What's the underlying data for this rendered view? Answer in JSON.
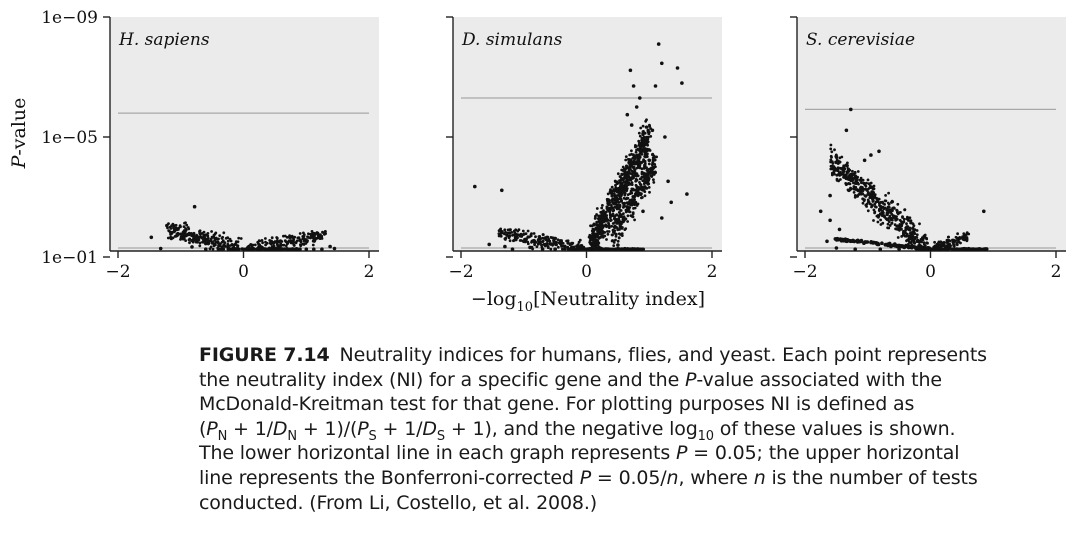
{
  "chart_data": [
    {
      "type": "scatter",
      "title": "H. sapiens",
      "xlim": [
        -2,
        2
      ],
      "xticks": [
        -2,
        0,
        2
      ],
      "xtick_labels": [
        "−2",
        "0",
        "2"
      ],
      "ylabel": "P-value",
      "y_scale": "log-reversed",
      "yticks": [
        1e-09,
        1e-05,
        0.1
      ],
      "ytick_labels": [
        "1e−09",
        "1e−05",
        "1e−01"
      ],
      "hlines": [
        0.05,
        1.6e-06
      ],
      "points": [
        [
          -1.47,
          0.022
        ],
        [
          -1.22,
          0.009
        ],
        [
          -1.05,
          0.018
        ],
        [
          -1.15,
          0.024
        ],
        [
          -1.32,
          0.052
        ],
        [
          -0.95,
          0.021
        ],
        [
          -0.78,
          0.0021
        ],
        [
          -0.82,
          0.046
        ],
        [
          -0.6,
          0.061
        ],
        [
          -0.4,
          0.19
        ],
        [
          -0.2,
          0.48
        ],
        [
          0.4,
          0.21
        ],
        [
          0.7,
          0.11
        ],
        [
          0.9,
          0.08
        ],
        [
          1.0,
          0.075
        ],
        [
          1.12,
          0.058
        ],
        [
          1.25,
          0.068
        ],
        [
          1.38,
          0.045
        ],
        [
          1.45,
          0.052
        ]
      ]
    },
    {
      "type": "scatter",
      "title": "D. simulans",
      "xlim": [
        -2,
        2
      ],
      "xticks": [
        -2,
        0,
        2
      ],
      "xtick_labels": [
        "−2",
        "0",
        "2"
      ],
      "xlabel": "−log10[Neutrality index]",
      "y_scale": "log-reversed",
      "yticks": [
        1e-09,
        1e-05,
        0.1
      ],
      "ytick_labels": [
        "",
        "",
        ""
      ],
      "hlines": [
        0.05,
        5e-07
      ],
      "points": [
        [
          -1.78,
          0.00045
        ],
        [
          -1.35,
          0.0006
        ],
        [
          -1.55,
          0.038
        ],
        [
          -1.3,
          0.045
        ],
        [
          -1.18,
          0.055
        ],
        [
          -1.0,
          0.03
        ],
        [
          -0.9,
          0.048
        ],
        [
          -0.7,
          0.08
        ],
        [
          -0.5,
          0.16
        ],
        [
          -0.2,
          0.45
        ],
        [
          0.3,
          0.1
        ],
        [
          0.45,
          0.01
        ],
        [
          0.6,
          0.002
        ],
        [
          0.65,
          1.8e-06
        ],
        [
          0.7,
          6e-08
        ],
        [
          0.75,
          2e-07
        ],
        [
          0.8,
          1e-06
        ],
        [
          0.85,
          5e-07
        ],
        [
          0.72,
          4e-06
        ],
        [
          0.9,
          2e-05
        ],
        [
          1.0,
          6e-05
        ],
        [
          1.05,
          6e-06
        ],
        [
          1.1,
          2e-07
        ],
        [
          1.15,
          8e-09
        ],
        [
          1.2,
          3.5e-08
        ],
        [
          1.25,
          1e-05
        ],
        [
          1.3,
          0.0003
        ],
        [
          1.35,
          0.0015
        ],
        [
          1.45,
          5e-08
        ],
        [
          1.52,
          1.6e-07
        ],
        [
          1.6,
          0.0008
        ],
        [
          0.9,
          0.003
        ],
        [
          1.2,
          0.005
        ],
        [
          0.5,
          0.04
        ]
      ]
    },
    {
      "type": "scatter",
      "title": "S. cerevisiae",
      "xlim": [
        -2,
        2
      ],
      "xticks": [
        -2,
        0,
        2
      ],
      "xtick_labels": [
        "−2",
        "0",
        "2"
      ],
      "y_scale": "log-reversed",
      "yticks": [
        1e-09,
        1e-05,
        0.1
      ],
      "ytick_labels": [
        "",
        "",
        ""
      ],
      "hlines": [
        0.05,
        1.2e-06
      ],
      "points": [
        [
          -1.27,
          1.2e-06
        ],
        [
          -1.5,
          4.5e-05
        ],
        [
          -1.34,
          6e-06
        ],
        [
          -1.6,
          0.0009
        ],
        [
          -1.75,
          0.003
        ],
        [
          -1.6,
          0.006
        ],
        [
          -1.45,
          0.012
        ],
        [
          -1.3,
          0.0006
        ],
        [
          -1.2,
          0.0002
        ],
        [
          -1.05,
          6e-05
        ],
        [
          -0.95,
          4e-05
        ],
        [
          -0.82,
          3e-05
        ],
        [
          -1.65,
          0.03
        ],
        [
          -1.5,
          0.05
        ],
        [
          -1.2,
          0.08
        ],
        [
          -0.8,
          0.12
        ],
        [
          -0.5,
          0.25
        ],
        [
          0.35,
          0.07
        ],
        [
          0.55,
          0.055
        ],
        [
          0.65,
          0.09
        ],
        [
          0.75,
          0.28
        ],
        [
          0.85,
          0.003
        ]
      ]
    }
  ],
  "caption": {
    "label": "FIGURE 7.14",
    "lines": [
      "Neutrality indices for humans, flies, and yeast. Each point represents",
      "the neutrality index (NI) for a specific gene and the P-value associated with the",
      "McDonald-Kreitman test for that gene. For plotting purposes NI is defined as",
      "(PN + 1/DN + 1)/(PS + 1/DS + 1), and the negative log10 of these values is shown.",
      "The lower horizontal line in each graph represents P = 0.05; the upper horizontal",
      "line represents the Bonferroni-corrected P = 0.05/n, where n is the number of tests",
      "conducted. (From Li, Costello, et al. 2008.)"
    ]
  }
}
